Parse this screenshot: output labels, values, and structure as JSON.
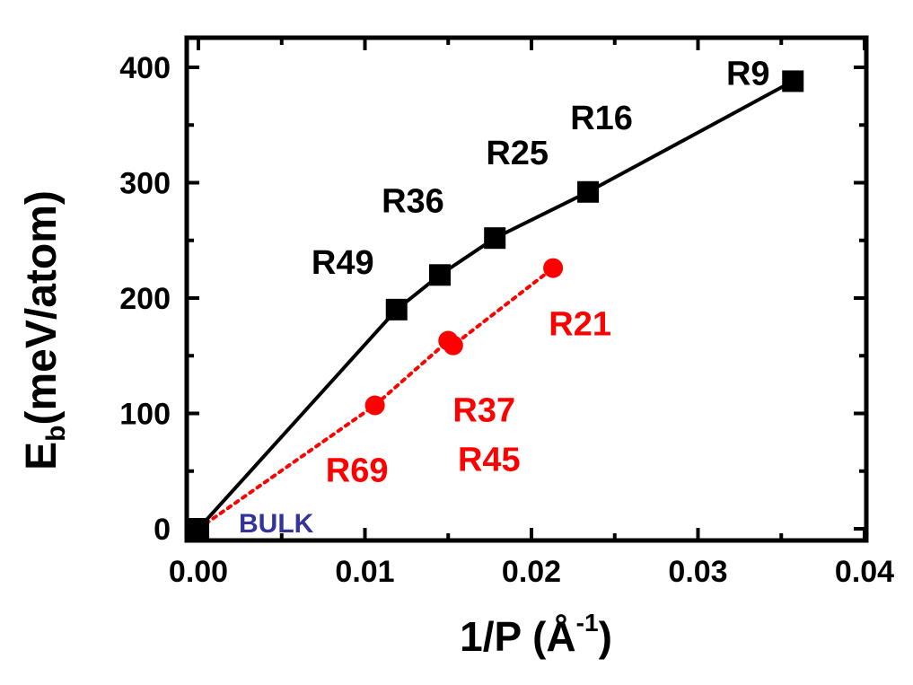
{
  "chart_data": {
    "type": "line",
    "xlabel": "1/P (Å",
    "xlabel_sup": "-1",
    "xlabel_close": ")",
    "ylabel_main": "E",
    "ylabel_sub": "b",
    "ylabel_rest": "(meV/atom)",
    "xlim": [
      0,
      0.04
    ],
    "ylim": [
      -10,
      440
    ],
    "x_ticks": [
      0.0,
      0.01,
      0.02,
      0.03,
      0.04
    ],
    "x_tick_labels": [
      "0.00",
      "0.01",
      "0.02",
      "0.03",
      "0.04"
    ],
    "y_ticks": [
      0,
      100,
      200,
      300,
      400
    ],
    "y_tick_labels": [
      "0",
      "100",
      "200",
      "300",
      "400"
    ],
    "grid": false,
    "legend": "none",
    "series": [
      {
        "color": "#000000",
        "marker": "square",
        "line_style": "solid",
        "points": [
          {
            "x": 0.0,
            "y": 0,
            "label": ""
          },
          {
            "x": 0.0119,
            "y": 190,
            "label": "R49"
          },
          {
            "x": 0.0145,
            "y": 220,
            "label": "R36"
          },
          {
            "x": 0.0178,
            "y": 252,
            "label": "R25"
          },
          {
            "x": 0.0234,
            "y": 292,
            "label": "R16"
          },
          {
            "x": 0.0357,
            "y": 388,
            "label": "R9"
          }
        ]
      },
      {
        "color": "#ff0000",
        "marker": "circle",
        "line_style": "dotted",
        "points": [
          {
            "x": 0.0,
            "y": 0,
            "label": ""
          },
          {
            "x": 0.0106,
            "y": 107,
            "label": "R69"
          },
          {
            "x": 0.015,
            "y": 163,
            "label": "R37"
          },
          {
            "x": 0.0153,
            "y": 159,
            "label": "R45"
          },
          {
            "x": 0.0213,
            "y": 226,
            "label": "R21"
          }
        ]
      }
    ],
    "annotations": [
      {
        "text": "BULK",
        "x": 0.0,
        "y": 0,
        "color": "#333399"
      }
    ]
  }
}
